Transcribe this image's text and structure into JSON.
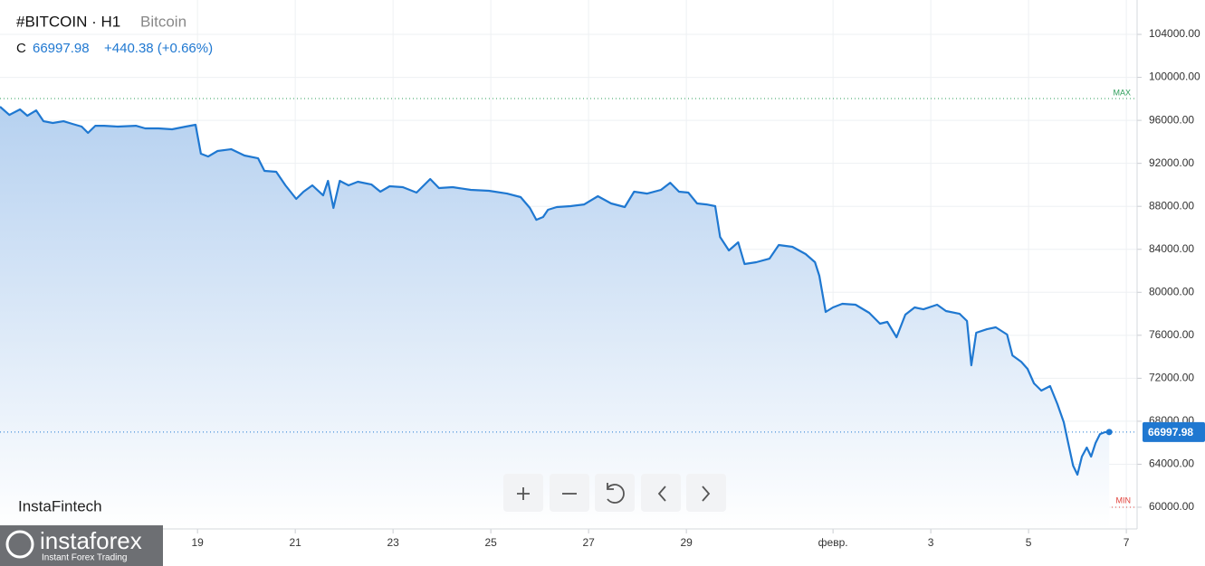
{
  "header": {
    "symbol": "#BITCOIN · H1",
    "name": "Bitcoin",
    "close_label": "C",
    "change": "+440.38 (+0.66%)",
    "brand": "InstaFintech",
    "logo": "instaforex",
    "logo_tagline": "Instant Forex Trading"
  },
  "chart_data": {
    "type": "line",
    "x": [
      14.96,
      15.15,
      15.37,
      15.52,
      15.7,
      15.85,
      16.04,
      16.26,
      16.44,
      16.63,
      16.76,
      16.91,
      17.09,
      17.37,
      17.74,
      17.93,
      18.2,
      18.48,
      18.76,
      18.96,
      19.07,
      19.22,
      19.41,
      19.69,
      19.96,
      20.24,
      20.37,
      20.61,
      20.8,
      21.02,
      21.17,
      21.35,
      21.57,
      21.67,
      21.78,
      21.91,
      22.09,
      22.28,
      22.56,
      22.74,
      22.93,
      23.2,
      23.48,
      23.76,
      23.94,
      24.22,
      24.59,
      24.96,
      25.33,
      25.61,
      25.8,
      25.93,
      26.07,
      26.17,
      26.35,
      26.63,
      26.91,
      27.19,
      27.46,
      27.74,
      27.93,
      28.2,
      28.48,
      28.67,
      28.85,
      29.04,
      29.22,
      29.41,
      29.59,
      29.69,
      29.87,
      30.06,
      30.19,
      30.43,
      30.7,
      30.89,
      31.17,
      31.44,
      31.63,
      31.72,
      31.85,
      32.0,
      32.19,
      32.46,
      32.74,
      32.96,
      33.11,
      33.3,
      33.48,
      33.67,
      33.85,
      34.13,
      34.31,
      34.59,
      34.74,
      34.83,
      34.93,
      35.15,
      35.33,
      35.56,
      35.67,
      35.85,
      35.98,
      36.11,
      36.26,
      36.44,
      36.59,
      36.72,
      36.81,
      36.91,
      37.0,
      37.09,
      37.19,
      37.28,
      37.37,
      37.46,
      37.56,
      37.65
    ],
    "series": [
      {
        "name": "Bitcoin",
        "color": "#1f78d1",
        "values": [
          97270,
          96510,
          97020,
          96430,
          96930,
          95920,
          95760,
          95920,
          95670,
          95420,
          94830,
          95500,
          95500,
          95420,
          95500,
          95250,
          95250,
          95170,
          95420,
          95590,
          92900,
          92640,
          93150,
          93320,
          92730,
          92470,
          91300,
          91210,
          89950,
          88690,
          89360,
          89950,
          89020,
          90370,
          87850,
          90370,
          89950,
          90290,
          90030,
          89360,
          89870,
          89780,
          89280,
          90540,
          89700,
          89780,
          89530,
          89450,
          89190,
          88860,
          87850,
          86750,
          87010,
          87680,
          87930,
          88020,
          88180,
          88940,
          88270,
          87930,
          89360,
          89190,
          89530,
          90200,
          89360,
          89280,
          88270,
          88180,
          88020,
          85150,
          83890,
          84650,
          82630,
          82800,
          83130,
          84400,
          84230,
          83560,
          82800,
          81540,
          78170,
          78590,
          78930,
          78850,
          78090,
          77080,
          77250,
          75820,
          77920,
          78590,
          78420,
          78850,
          78260,
          78000,
          77330,
          73210,
          76240,
          76570,
          76740,
          76070,
          74130,
          73540,
          72870,
          71530,
          70850,
          71270,
          69590,
          67910,
          65970,
          63870,
          63030,
          64710,
          65550,
          64710,
          65970,
          66810,
          66980,
          66997.98
        ]
      }
    ],
    "xlim": [
      14.96,
      38.22
    ],
    "xticks": [
      19,
      21,
      23,
      25,
      27,
      29,
      {
        "value": 32,
        "label": "февр."
      },
      {
        "value": 34,
        "label": "3"
      },
      {
        "value": 36,
        "label": "5"
      },
      {
        "value": 38,
        "label": "7"
      }
    ],
    "ylim": [
      57980,
      107200
    ],
    "yticks": [
      {
        "value": 60000,
        "label": "60000.00"
      },
      {
        "value": 64000,
        "label": "64000.00"
      },
      {
        "value": 68000,
        "label": "68000.00"
      },
      {
        "value": 72000,
        "label": "72000.00"
      },
      {
        "value": 76000,
        "label": "76000.00"
      },
      {
        "value": 80000,
        "label": "80000.00"
      },
      {
        "value": 84000,
        "label": "84000.00"
      },
      {
        "value": 88000,
        "label": "88000.00"
      },
      {
        "value": 92000,
        "label": "92000.00"
      },
      {
        "value": 96000,
        "label": "96000.00"
      },
      {
        "value": 100000,
        "label": "100000.00"
      },
      {
        "value": 104000,
        "label": "104000.00"
      }
    ],
    "grid": true,
    "max_line": {
      "value": 98030,
      "label": "MAX",
      "color": "#2e9e5b"
    },
    "min_line": {
      "value": 60000,
      "label": "MIN",
      "color": "#e0413a"
    }
  }
}
